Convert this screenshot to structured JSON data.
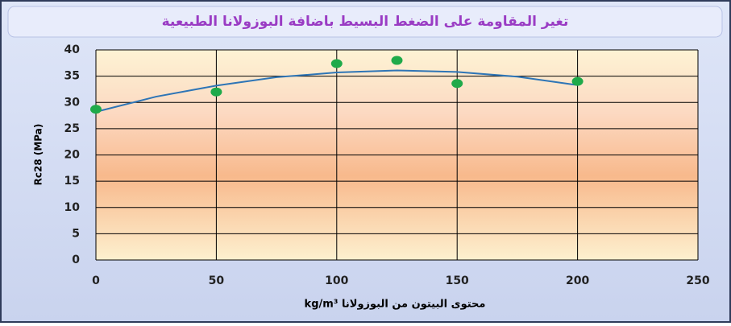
{
  "chart_data": {
    "type": "scatter",
    "title": "تغير المقاومة على الضغط البسيط باضافة البوزولانا الطبيعية",
    "xlabel": "محتوى البيتون من البوزولانا kg/m³",
    "ylabel": "Rc28 (MPa)",
    "x": [
      0,
      50,
      100,
      125,
      150,
      200
    ],
    "values": [
      28.7,
      32,
      37.4,
      38,
      33.6,
      34
    ],
    "color": "#1faa4a",
    "trendline": {
      "color": "#2e75b6",
      "x": [
        0,
        25,
        50,
        75,
        100,
        125,
        150,
        175,
        200
      ],
      "values": [
        28.2,
        31.1,
        33.2,
        34.8,
        35.7,
        36.1,
        35.8,
        34.9,
        33.3
      ]
    },
    "xlim": [
      0,
      250
    ],
    "xticks": [
      0,
      50,
      100,
      150,
      200,
      250
    ],
    "ylim": [
      0,
      40
    ],
    "yticks": [
      0,
      5,
      10,
      15,
      20,
      25,
      30,
      35,
      40
    ],
    "grid": true
  }
}
